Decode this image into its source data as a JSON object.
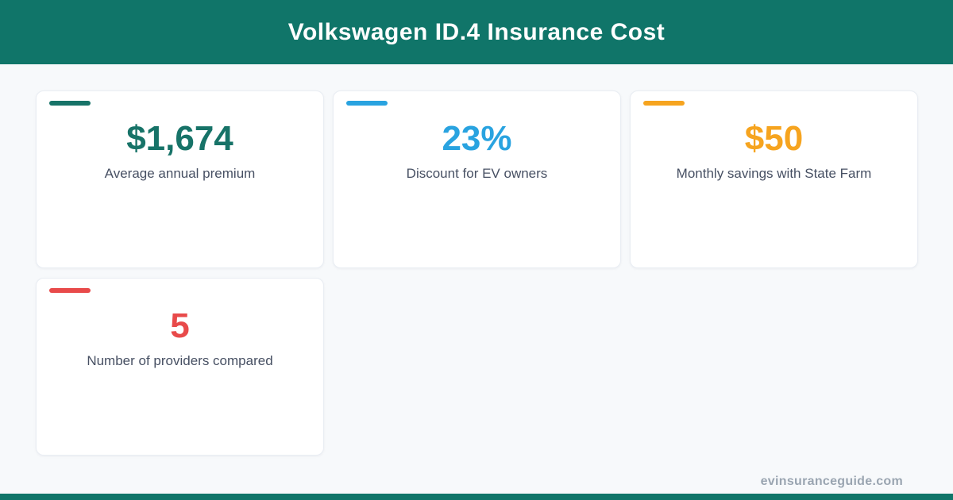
{
  "page": {
    "background": "#f7f9fb"
  },
  "header": {
    "title": "Volkswagen ID.4 Insurance Cost",
    "background": "#107569",
    "text_color": "#ffffff"
  },
  "cards": [
    {
      "value": "$1,674",
      "label": "Average annual premium",
      "color": "#177368"
    },
    {
      "value": "23%",
      "label": "Discount for EV owners",
      "color": "#29a3e0"
    },
    {
      "value": "$50",
      "label": "Monthly savings with State Farm",
      "color": "#f6a41f"
    },
    {
      "value": "5",
      "label": "Number of providers compared",
      "color": "#e84a4a"
    }
  ],
  "footer": {
    "watermark": "evinsuranceguide.com",
    "bar_color": "#107569"
  },
  "chart_data": {
    "type": "table",
    "title": "Volkswagen ID.4 Insurance Cost",
    "stats": [
      {
        "label": "Average annual premium",
        "value": "$1,674",
        "numeric": 1674,
        "color": "#177368"
      },
      {
        "label": "Discount for EV owners",
        "value": "23%",
        "numeric": 23,
        "color": "#29a3e0"
      },
      {
        "label": "Monthly savings with State Farm",
        "value": "$50",
        "numeric": 50,
        "color": "#f6a41f"
      },
      {
        "label": "Number of providers compared",
        "value": "5",
        "numeric": 5,
        "color": "#e84a4a"
      }
    ],
    "legend_position": "none",
    "grid": false,
    "source": "evinsuranceguide.com"
  }
}
